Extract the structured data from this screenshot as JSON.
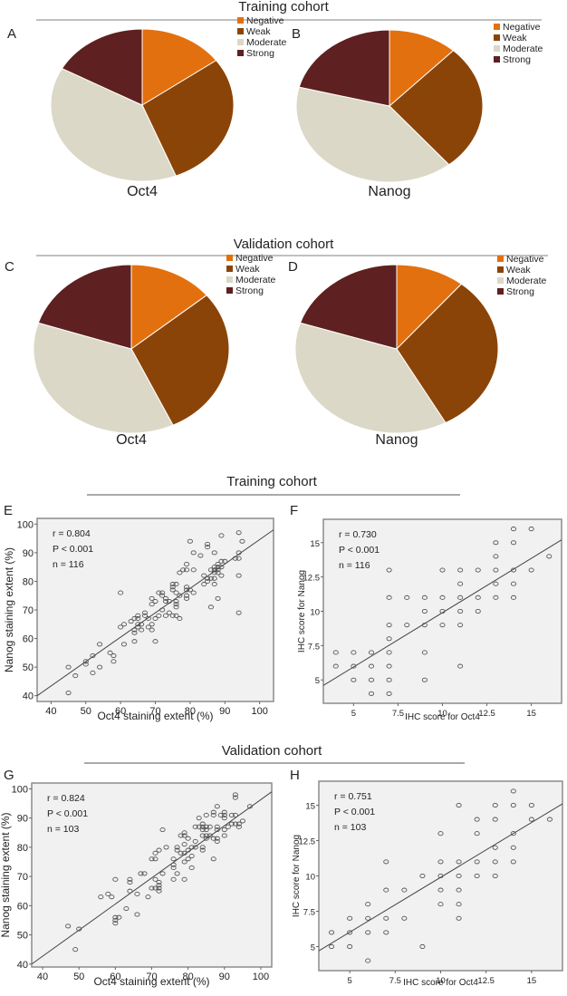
{
  "colors": {
    "negative": "#E3700E",
    "weak": "#8B4408",
    "moderate": "#DCD8C7",
    "strong": "#5E2020",
    "plot_bg": "#F1F1F1",
    "frame": "#8C8C8C",
    "point": "#555555",
    "fit_line": "#444444",
    "separator": "#9A9A9A"
  },
  "sections": {
    "pie_training_title": "Training cohort",
    "pie_validation_title": "Validation cohort",
    "scatter_training_title": "Training cohort",
    "scatter_validation_title": "Validation cohort"
  },
  "chart_data": [
    {
      "panel": "A",
      "type": "pie",
      "caption": "Oct4",
      "cohort": "Training cohort",
      "legend": [
        "Negative",
        "Weak",
        "Moderate",
        "Strong"
      ],
      "legend_placement": "top-right",
      "values": [
        15,
        29,
        39,
        17
      ],
      "unit": "%"
    },
    {
      "panel": "B",
      "type": "pie",
      "caption": "Nanog",
      "cohort": "Training cohort",
      "legend": [
        "Negative",
        "Weak",
        "Moderate",
        "Strong"
      ],
      "legend_placement": "top-right",
      "values": [
        12,
        27,
        40,
        21
      ],
      "unit": "%"
    },
    {
      "panel": "C",
      "type": "pie",
      "caption": "Oct4",
      "cohort": "Validation cohort",
      "legend": [
        "Negative",
        "Weak",
        "Moderate",
        "Strong"
      ],
      "legend_placement": "top-right",
      "values": [
        14,
        29,
        37,
        20
      ],
      "unit": "%"
    },
    {
      "panel": "D",
      "type": "pie",
      "caption": "Nanog",
      "cohort": "Validation cohort",
      "legend": [
        "Negative",
        "Weak",
        "Moderate",
        "Strong"
      ],
      "legend_placement": "top-right",
      "values": [
        11,
        31,
        38,
        20
      ],
      "unit": "%"
    },
    {
      "panel": "E",
      "type": "scatter",
      "cohort": "Training cohort",
      "xlabel": "Oct4 staining extent (%)",
      "ylabel": "Nanog staining extent (%)",
      "xlim": [
        36,
        104
      ],
      "ylim": [
        38,
        102
      ],
      "xticks": [
        40,
        50,
        60,
        70,
        80,
        90,
        100
      ],
      "yticks": [
        40,
        50,
        60,
        70,
        80,
        90,
        100
      ],
      "stats": [
        "r = 0.804",
        "P < 0.001",
        "n = 116"
      ],
      "fit_line": {
        "x": [
          36,
          104
        ],
        "y": [
          40,
          98
        ]
      },
      "grid": false,
      "points": [
        [
          45,
          41
        ],
        [
          45,
          50
        ],
        [
          47,
          47
        ],
        [
          50,
          51
        ],
        [
          50,
          52
        ],
        [
          52,
          48
        ],
        [
          52,
          54
        ],
        [
          54,
          50
        ],
        [
          54,
          58
        ],
        [
          57,
          55
        ],
        [
          58,
          52
        ],
        [
          58,
          54
        ],
        [
          60,
          64
        ],
        [
          60,
          76
        ],
        [
          61,
          58
        ],
        [
          61,
          65
        ],
        [
          63,
          66
        ],
        [
          64,
          59
        ],
        [
          64,
          62
        ],
        [
          64,
          63
        ],
        [
          64,
          67
        ],
        [
          65,
          64
        ],
        [
          65,
          65
        ],
        [
          65,
          67
        ],
        [
          65,
          68
        ],
        [
          66,
          63
        ],
        [
          66,
          65
        ],
        [
          67,
          68
        ],
        [
          67,
          69
        ],
        [
          68,
          64
        ],
        [
          68,
          67
        ],
        [
          69,
          63
        ],
        [
          69,
          65
        ],
        [
          69,
          72
        ],
        [
          69,
          74
        ],
        [
          70,
          59
        ],
        [
          70,
          67
        ],
        [
          70,
          73
        ],
        [
          71,
          68
        ],
        [
          71,
          76
        ],
        [
          72,
          70
        ],
        [
          72,
          75
        ],
        [
          72,
          76
        ],
        [
          73,
          68
        ],
        [
          73,
          73
        ],
        [
          73,
          74
        ],
        [
          74,
          69
        ],
        [
          74,
          73
        ],
        [
          75,
          68
        ],
        [
          75,
          77
        ],
        [
          75,
          78
        ],
        [
          75,
          79
        ],
        [
          76,
          68
        ],
        [
          76,
          71
        ],
        [
          76,
          72
        ],
        [
          76,
          73
        ],
        [
          76,
          76
        ],
        [
          76,
          79
        ],
        [
          77,
          67
        ],
        [
          77,
          75
        ],
        [
          77,
          83
        ],
        [
          78,
          84
        ],
        [
          79,
          74
        ],
        [
          79,
          75
        ],
        [
          79,
          77
        ],
        [
          79,
          78
        ],
        [
          79,
          84
        ],
        [
          79,
          86
        ],
        [
          80,
          77
        ],
        [
          80,
          94
        ],
        [
          81,
          76
        ],
        [
          81,
          84
        ],
        [
          81,
          90
        ],
        [
          83,
          89
        ],
        [
          84,
          79
        ],
        [
          84,
          82
        ],
        [
          85,
          80
        ],
        [
          85,
          81
        ],
        [
          85,
          92
        ],
        [
          85,
          93
        ],
        [
          86,
          71
        ],
        [
          86,
          81
        ],
        [
          86,
          84
        ],
        [
          87,
          79
        ],
        [
          87,
          81
        ],
        [
          87,
          83
        ],
        [
          87,
          84
        ],
        [
          87,
          85
        ],
        [
          87,
          90
        ],
        [
          88,
          74
        ],
        [
          88,
          83
        ],
        [
          88,
          84
        ],
        [
          88,
          85
        ],
        [
          88,
          86
        ],
        [
          89,
          82
        ],
        [
          89,
          85
        ],
        [
          89,
          87
        ],
        [
          89,
          96
        ],
        [
          90,
          87
        ],
        [
          93,
          88
        ],
        [
          94,
          69
        ],
        [
          94,
          82
        ],
        [
          94,
          88
        ],
        [
          94,
          90
        ],
        [
          94,
          97
        ],
        [
          95,
          94
        ]
      ]
    },
    {
      "panel": "F",
      "type": "scatter",
      "cohort": "Training cohort",
      "xlabel": "IHC score for Oct4",
      "ylabel": "IHC score for Nanog",
      "xlim": [
        3.3,
        16.7
      ],
      "ylim": [
        3.3,
        16.7
      ],
      "xticks": [
        5,
        7.5,
        10,
        12.5,
        15
      ],
      "yticks": [
        5,
        7.5,
        10,
        12.5,
        15
      ],
      "stats": [
        "r = 0.730",
        "P < 0.001",
        "n = 116"
      ],
      "fit_line": {
        "x": [
          3.3,
          16.7
        ],
        "y": [
          4.6,
          15.2
        ]
      },
      "grid": false,
      "points": [
        [
          4,
          6
        ],
        [
          4,
          7
        ],
        [
          5,
          5
        ],
        [
          5,
          6
        ],
        [
          5,
          7
        ],
        [
          6,
          4
        ],
        [
          6,
          5
        ],
        [
          6,
          6
        ],
        [
          6,
          7
        ],
        [
          7,
          4
        ],
        [
          7,
          5
        ],
        [
          7,
          6
        ],
        [
          7,
          7
        ],
        [
          7,
          8
        ],
        [
          7,
          9
        ],
        [
          7,
          11
        ],
        [
          7,
          13
        ],
        [
          8,
          9
        ],
        [
          8,
          11
        ],
        [
          9,
          5
        ],
        [
          9,
          7
        ],
        [
          9,
          9
        ],
        [
          9,
          10
        ],
        [
          9,
          11
        ],
        [
          10,
          9
        ],
        [
          10,
          10
        ],
        [
          10,
          11
        ],
        [
          10,
          13
        ],
        [
          11,
          6
        ],
        [
          11,
          9
        ],
        [
          11,
          10
        ],
        [
          11,
          11
        ],
        [
          11,
          12
        ],
        [
          11,
          13
        ],
        [
          12,
          10
        ],
        [
          12,
          11
        ],
        [
          12,
          13
        ],
        [
          13,
          11
        ],
        [
          13,
          12
        ],
        [
          13,
          13
        ],
        [
          13,
          14
        ],
        [
          13,
          15
        ],
        [
          14,
          11
        ],
        [
          14,
          12
        ],
        [
          14,
          13
        ],
        [
          14,
          15
        ],
        [
          14,
          16
        ],
        [
          15,
          13
        ],
        [
          15,
          16
        ],
        [
          16,
          14
        ]
      ]
    },
    {
      "panel": "G",
      "type": "scatter",
      "cohort": "Validation cohort",
      "xlabel": "Oct4 staining extent (%)",
      "ylabel": "Nanog staining extent (%)",
      "xlim": [
        37,
        103
      ],
      "ylim": [
        39,
        102
      ],
      "xticks": [
        40,
        50,
        60,
        70,
        80,
        90,
        100
      ],
      "yticks": [
        40,
        50,
        60,
        70,
        80,
        90,
        100
      ],
      "stats": [
        "r = 0.824",
        "P < 0.001",
        "n = 103"
      ],
      "fit_line": {
        "x": [
          37,
          103
        ],
        "y": [
          40,
          99
        ]
      },
      "grid": false,
      "points": [
        [
          47,
          53
        ],
        [
          49,
          45
        ],
        [
          50,
          52
        ],
        [
          56,
          63
        ],
        [
          58,
          64
        ],
        [
          59,
          63
        ],
        [
          60,
          54
        ],
        [
          60,
          55
        ],
        [
          60,
          56
        ],
        [
          60,
          69
        ],
        [
          61,
          56
        ],
        [
          63,
          59
        ],
        [
          64,
          65
        ],
        [
          64,
          68
        ],
        [
          64,
          69
        ],
        [
          66,
          57
        ],
        [
          66,
          64
        ],
        [
          67,
          71
        ],
        [
          68,
          71
        ],
        [
          69,
          63
        ],
        [
          70,
          66
        ],
        [
          70,
          76
        ],
        [
          71,
          66
        ],
        [
          71,
          69
        ],
        [
          71,
          76
        ],
        [
          71,
          78
        ],
        [
          72,
          65
        ],
        [
          72,
          66
        ],
        [
          72,
          67
        ],
        [
          72,
          68
        ],
        [
          72,
          79
        ],
        [
          73,
          71
        ],
        [
          73,
          86
        ],
        [
          74,
          80
        ],
        [
          76,
          69
        ],
        [
          76,
          73
        ],
        [
          76,
          74
        ],
        [
          76,
          76
        ],
        [
          77,
          71
        ],
        [
          77,
          79
        ],
        [
          77,
          80
        ],
        [
          78,
          78
        ],
        [
          78,
          84
        ],
        [
          79,
          69
        ],
        [
          79,
          75
        ],
        [
          79,
          78
        ],
        [
          79,
          81
        ],
        [
          79,
          84
        ],
        [
          79,
          85
        ],
        [
          80,
          76
        ],
        [
          80,
          79
        ],
        [
          80,
          83
        ],
        [
          81,
          73
        ],
        [
          81,
          77
        ],
        [
          81,
          80
        ],
        [
          82,
          80
        ],
        [
          82,
          82
        ],
        [
          82,
          87
        ],
        [
          83,
          87
        ],
        [
          83,
          90
        ],
        [
          84,
          79
        ],
        [
          84,
          80
        ],
        [
          84,
          84
        ],
        [
          84,
          86
        ],
        [
          84,
          87
        ],
        [
          84,
          88
        ],
        [
          85,
          83
        ],
        [
          85,
          84
        ],
        [
          85,
          86
        ],
        [
          85,
          87
        ],
        [
          85,
          91
        ],
        [
          86,
          84
        ],
        [
          86,
          87
        ],
        [
          87,
          76
        ],
        [
          87,
          83
        ],
        [
          87,
          91
        ],
        [
          87,
          92
        ],
        [
          88,
          82
        ],
        [
          88,
          83
        ],
        [
          88,
          86
        ],
        [
          88,
          87
        ],
        [
          88,
          94
        ],
        [
          89,
          91
        ],
        [
          90,
          84
        ],
        [
          90,
          86
        ],
        [
          90,
          90
        ],
        [
          90,
          91
        ],
        [
          90,
          92
        ],
        [
          91,
          87
        ],
        [
          92,
          88
        ],
        [
          92,
          91
        ],
        [
          93,
          88
        ],
        [
          93,
          91
        ],
        [
          93,
          97
        ],
        [
          93,
          98
        ],
        [
          94,
          87
        ],
        [
          94,
          88
        ],
        [
          95,
          89
        ],
        [
          97,
          94
        ]
      ]
    },
    {
      "panel": "H",
      "type": "scatter",
      "cohort": "Validation cohort",
      "xlabel": "IHC score for Oct4",
      "ylabel": "IHC score for Nanog",
      "xlim": [
        3.3,
        16.7
      ],
      "ylim": [
        3.3,
        16.7
      ],
      "xticks": [
        5,
        7.5,
        10,
        12.5,
        15
      ],
      "yticks": [
        5,
        7.5,
        10,
        12.5,
        15
      ],
      "stats": [
        "r = 0.751",
        "P < 0.001",
        "n = 103"
      ],
      "fit_line": {
        "x": [
          3.3,
          16.7
        ],
        "y": [
          4.7,
          15.1
        ]
      },
      "grid": false,
      "points": [
        [
          4,
          5
        ],
        [
          4,
          6
        ],
        [
          5,
          5
        ],
        [
          5,
          6
        ],
        [
          5,
          7
        ],
        [
          6,
          4
        ],
        [
          6,
          6
        ],
        [
          6,
          7
        ],
        [
          6,
          8
        ],
        [
          7,
          6
        ],
        [
          7,
          7
        ],
        [
          7,
          9
        ],
        [
          7,
          11
        ],
        [
          8,
          7
        ],
        [
          8,
          9
        ],
        [
          9,
          5
        ],
        [
          9,
          10
        ],
        [
          10,
          8
        ],
        [
          10,
          9
        ],
        [
          10,
          10
        ],
        [
          10,
          11
        ],
        [
          10,
          13
        ],
        [
          11,
          7
        ],
        [
          11,
          8
        ],
        [
          11,
          9
        ],
        [
          11,
          10
        ],
        [
          11,
          11
        ],
        [
          11,
          15
        ],
        [
          12,
          10
        ],
        [
          12,
          11
        ],
        [
          12,
          13
        ],
        [
          12,
          14
        ],
        [
          13,
          10
        ],
        [
          13,
          11
        ],
        [
          13,
          12
        ],
        [
          13,
          14
        ],
        [
          13,
          15
        ],
        [
          14,
          11
        ],
        [
          14,
          12
        ],
        [
          14,
          13
        ],
        [
          14,
          15
        ],
        [
          14,
          16
        ],
        [
          15,
          14
        ],
        [
          15,
          15
        ],
        [
          16,
          14
        ]
      ]
    }
  ]
}
